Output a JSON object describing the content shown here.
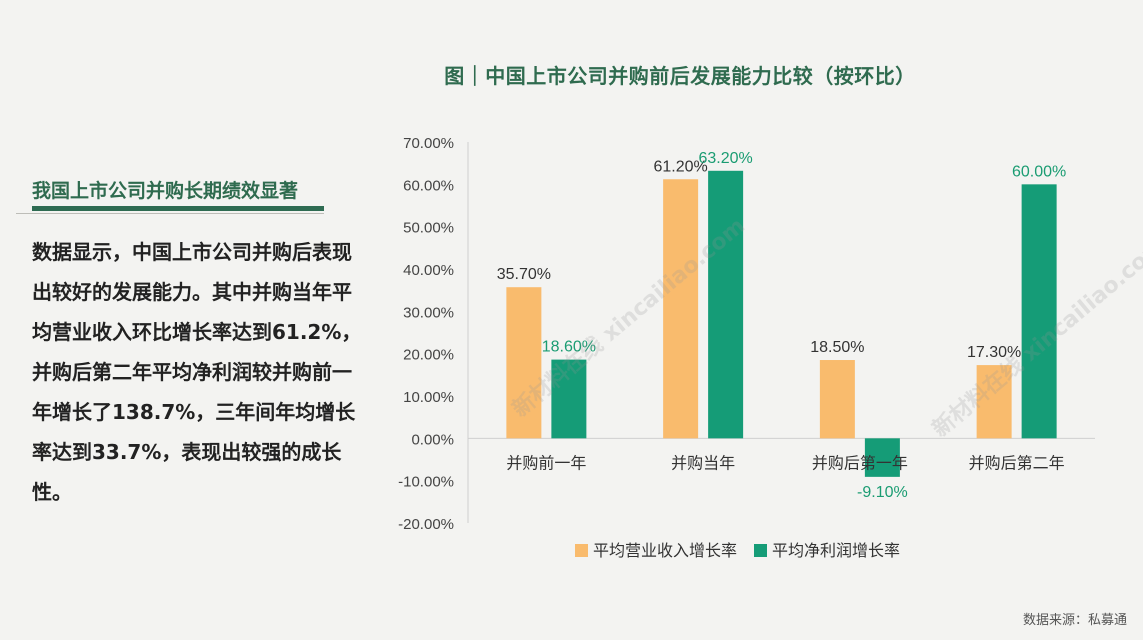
{
  "title": "图｜中国上市公司并购前后发展能力比较（按环比）",
  "left_panel": {
    "heading": "我国上市公司并购长期绩效显著",
    "body": "数据显示，中国上市公司并购后表现出较好的发展能力。其中并购当年平均营业收入环比增长率达到61.2%，并购后第二年平均净利润较并购前一年增长了138.7%，三年间年均增长率达到33.7%，表现出较强的成长性。"
  },
  "source": "数据来源：私募通",
  "watermark": "新材料在线 xincailiao.com",
  "colors": {
    "orange": "#f9bb6d",
    "green": "#159c77",
    "green_text": "#1a9c72",
    "axis": "#cfcfcf"
  },
  "chart_data": {
    "type": "bar",
    "title": "图｜中国上市公司并购前后发展能力比较（按环比）",
    "categories": [
      "并购前一年",
      "并购当年",
      "并购后第一年",
      "并购后第二年"
    ],
    "series": [
      {
        "name": "平均营业收入增长率",
        "values": [
          35.7,
          61.2,
          18.5,
          17.3
        ],
        "labels": [
          "35.70%",
          "61.20%",
          "18.50%",
          "17.30%"
        ]
      },
      {
        "name": "平均净利润增长率",
        "values": [
          18.6,
          63.2,
          -9.1,
          60.0
        ],
        "labels": [
          "18.60%",
          "63.20%",
          "-9.10%",
          "60.00%"
        ]
      }
    ],
    "ylim": [
      -20,
      70
    ],
    "yticks": [
      "70.00%",
      "60.00%",
      "50.00%",
      "40.00%",
      "30.00%",
      "20.00%",
      "10.00%",
      "0.00%",
      "-10.00%",
      "-20.00%"
    ],
    "grid": false,
    "legend": "bottom"
  }
}
